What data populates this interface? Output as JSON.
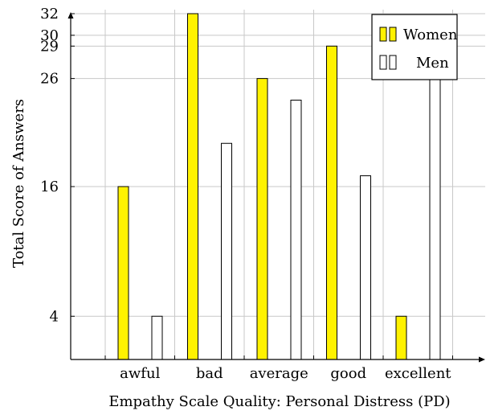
{
  "chart_data": {
    "type": "bar",
    "categories": [
      "awful",
      "bad",
      "average",
      "good",
      "excellent"
    ],
    "series": [
      {
        "name": "Women",
        "color": "#fff200",
        "values": [
          16,
          32,
          26,
          29,
          4
        ]
      },
      {
        "name": "Men",
        "color": "#ffffff",
        "values": [
          4,
          20,
          24,
          17,
          26
        ]
      }
    ],
    "yticks": [
      4,
      16,
      26,
      29,
      30,
      32
    ],
    "ylim": [
      0,
      32
    ],
    "xlabel": "Empathy Scale Quality: Personal Distress (PD)",
    "ylabel": "Total Score of Answers",
    "grid": true,
    "legend_position": "top-right"
  }
}
